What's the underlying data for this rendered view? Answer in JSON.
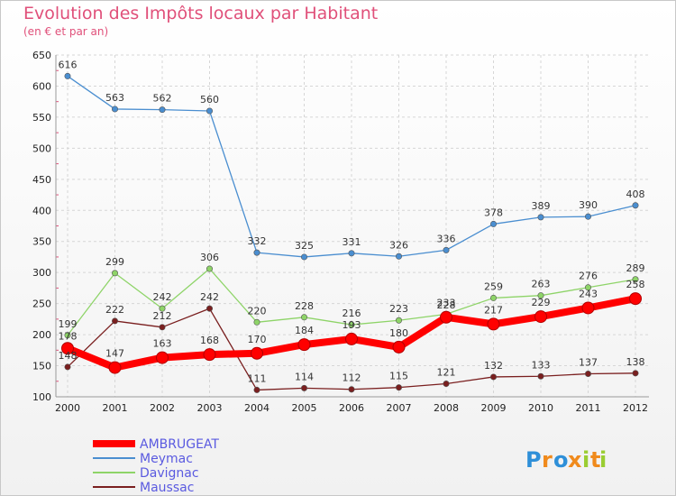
{
  "header": {
    "title": "Evolution des Impôts locaux par Habitant",
    "subtitle": "(en € et par an)"
  },
  "logo": {
    "text": "Proxiti"
  },
  "chart_data": {
    "type": "line",
    "title": "Evolution des Impôts locaux par Habitant",
    "subtitle": "(en € et par an)",
    "x": [
      "2000",
      "2001",
      "2002",
      "2003",
      "2004",
      "2005",
      "2006",
      "2007",
      "2008",
      "2009",
      "2010",
      "2011",
      "2012"
    ],
    "ylim": [
      100,
      650
    ],
    "yticks": [
      100,
      150,
      200,
      250,
      300,
      350,
      400,
      450,
      500,
      550,
      600,
      650
    ],
    "grid": true,
    "legend_position": "bottom-left",
    "series": [
      {
        "name": "AMBRUGEAT",
        "color": "#ff0000",
        "values": [
          178,
          147,
          163,
          168,
          170,
          184,
          193,
          180,
          228,
          217,
          229,
          243,
          258
        ]
      },
      {
        "name": "Meymac",
        "color": "#4a8ed0",
        "values": [
          616,
          563,
          562,
          560,
          332,
          325,
          331,
          326,
          336,
          378,
          389,
          390,
          408
        ]
      },
      {
        "name": "Davignac",
        "color": "#8ed468",
        "values": [
          199,
          299,
          242,
          306,
          220,
          228,
          216,
          223,
          233,
          259,
          263,
          276,
          289
        ]
      },
      {
        "name": "Maussac",
        "color": "#7a1f1f",
        "values": [
          148,
          222,
          212,
          242,
          111,
          114,
          112,
          115,
          121,
          132,
          133,
          137,
          138
        ]
      }
    ]
  }
}
